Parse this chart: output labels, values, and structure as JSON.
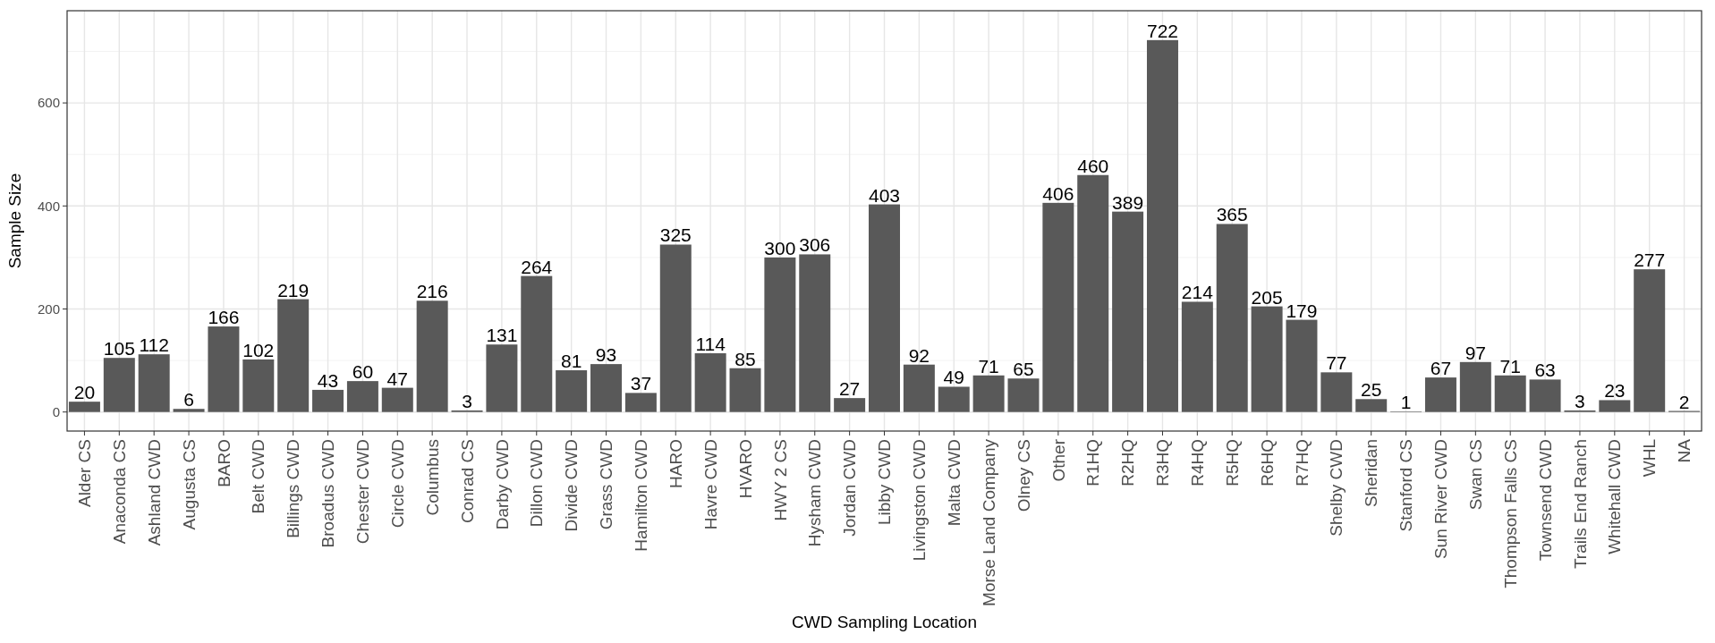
{
  "chart_data": {
    "type": "bar",
    "xlabel": "CWD Sampling Location",
    "ylabel": "Sample Size",
    "categories": [
      "Alder CS",
      "Anaconda CS",
      "Ashland CWD",
      "Augusta CS",
      "BARO",
      "Belt CWD",
      "Billings CWD",
      "Broadus CWD",
      "Chester CWD",
      "Circle CWD",
      "Columbus",
      "Conrad CS",
      "Darby CWD",
      "Dillon CWD",
      "Divide CWD",
      "Grass CWD",
      "Hamilton CWD",
      "HARO",
      "Havre CWD",
      "HVARO",
      "HWY 2 CS",
      "Hysham CWD",
      "Jordan CWD",
      "Libby CWD",
      "Livingston CWD",
      "Malta CWD",
      "Morse Land Company",
      "Olney CS",
      "Other",
      "R1HQ",
      "R2HQ",
      "R3HQ",
      "R4HQ",
      "R5HQ",
      "R6HQ",
      "R7HQ",
      "Shelby CWD",
      "Sheridan",
      "Stanford CS",
      "Sun River CWD",
      "Swan CS",
      "Thompson Falls CS",
      "Townsend CWD",
      "Trails End Ranch",
      "Whitehall CWD",
      "WHL",
      "NA"
    ],
    "values": [
      20,
      105,
      112,
      6,
      166,
      102,
      219,
      43,
      60,
      47,
      216,
      3,
      131,
      264,
      81,
      93,
      37,
      325,
      114,
      85,
      300,
      306,
      27,
      403,
      92,
      49,
      71,
      65,
      406,
      460,
      389,
      722,
      214,
      365,
      205,
      179,
      77,
      25,
      1,
      67,
      97,
      71,
      63,
      3,
      23,
      277,
      2
    ],
    "color": "#595959",
    "ylim": [
      -37,
      779
    ],
    "yticks": [
      0,
      200,
      400,
      600
    ],
    "grid": true,
    "data_labels": true
  }
}
